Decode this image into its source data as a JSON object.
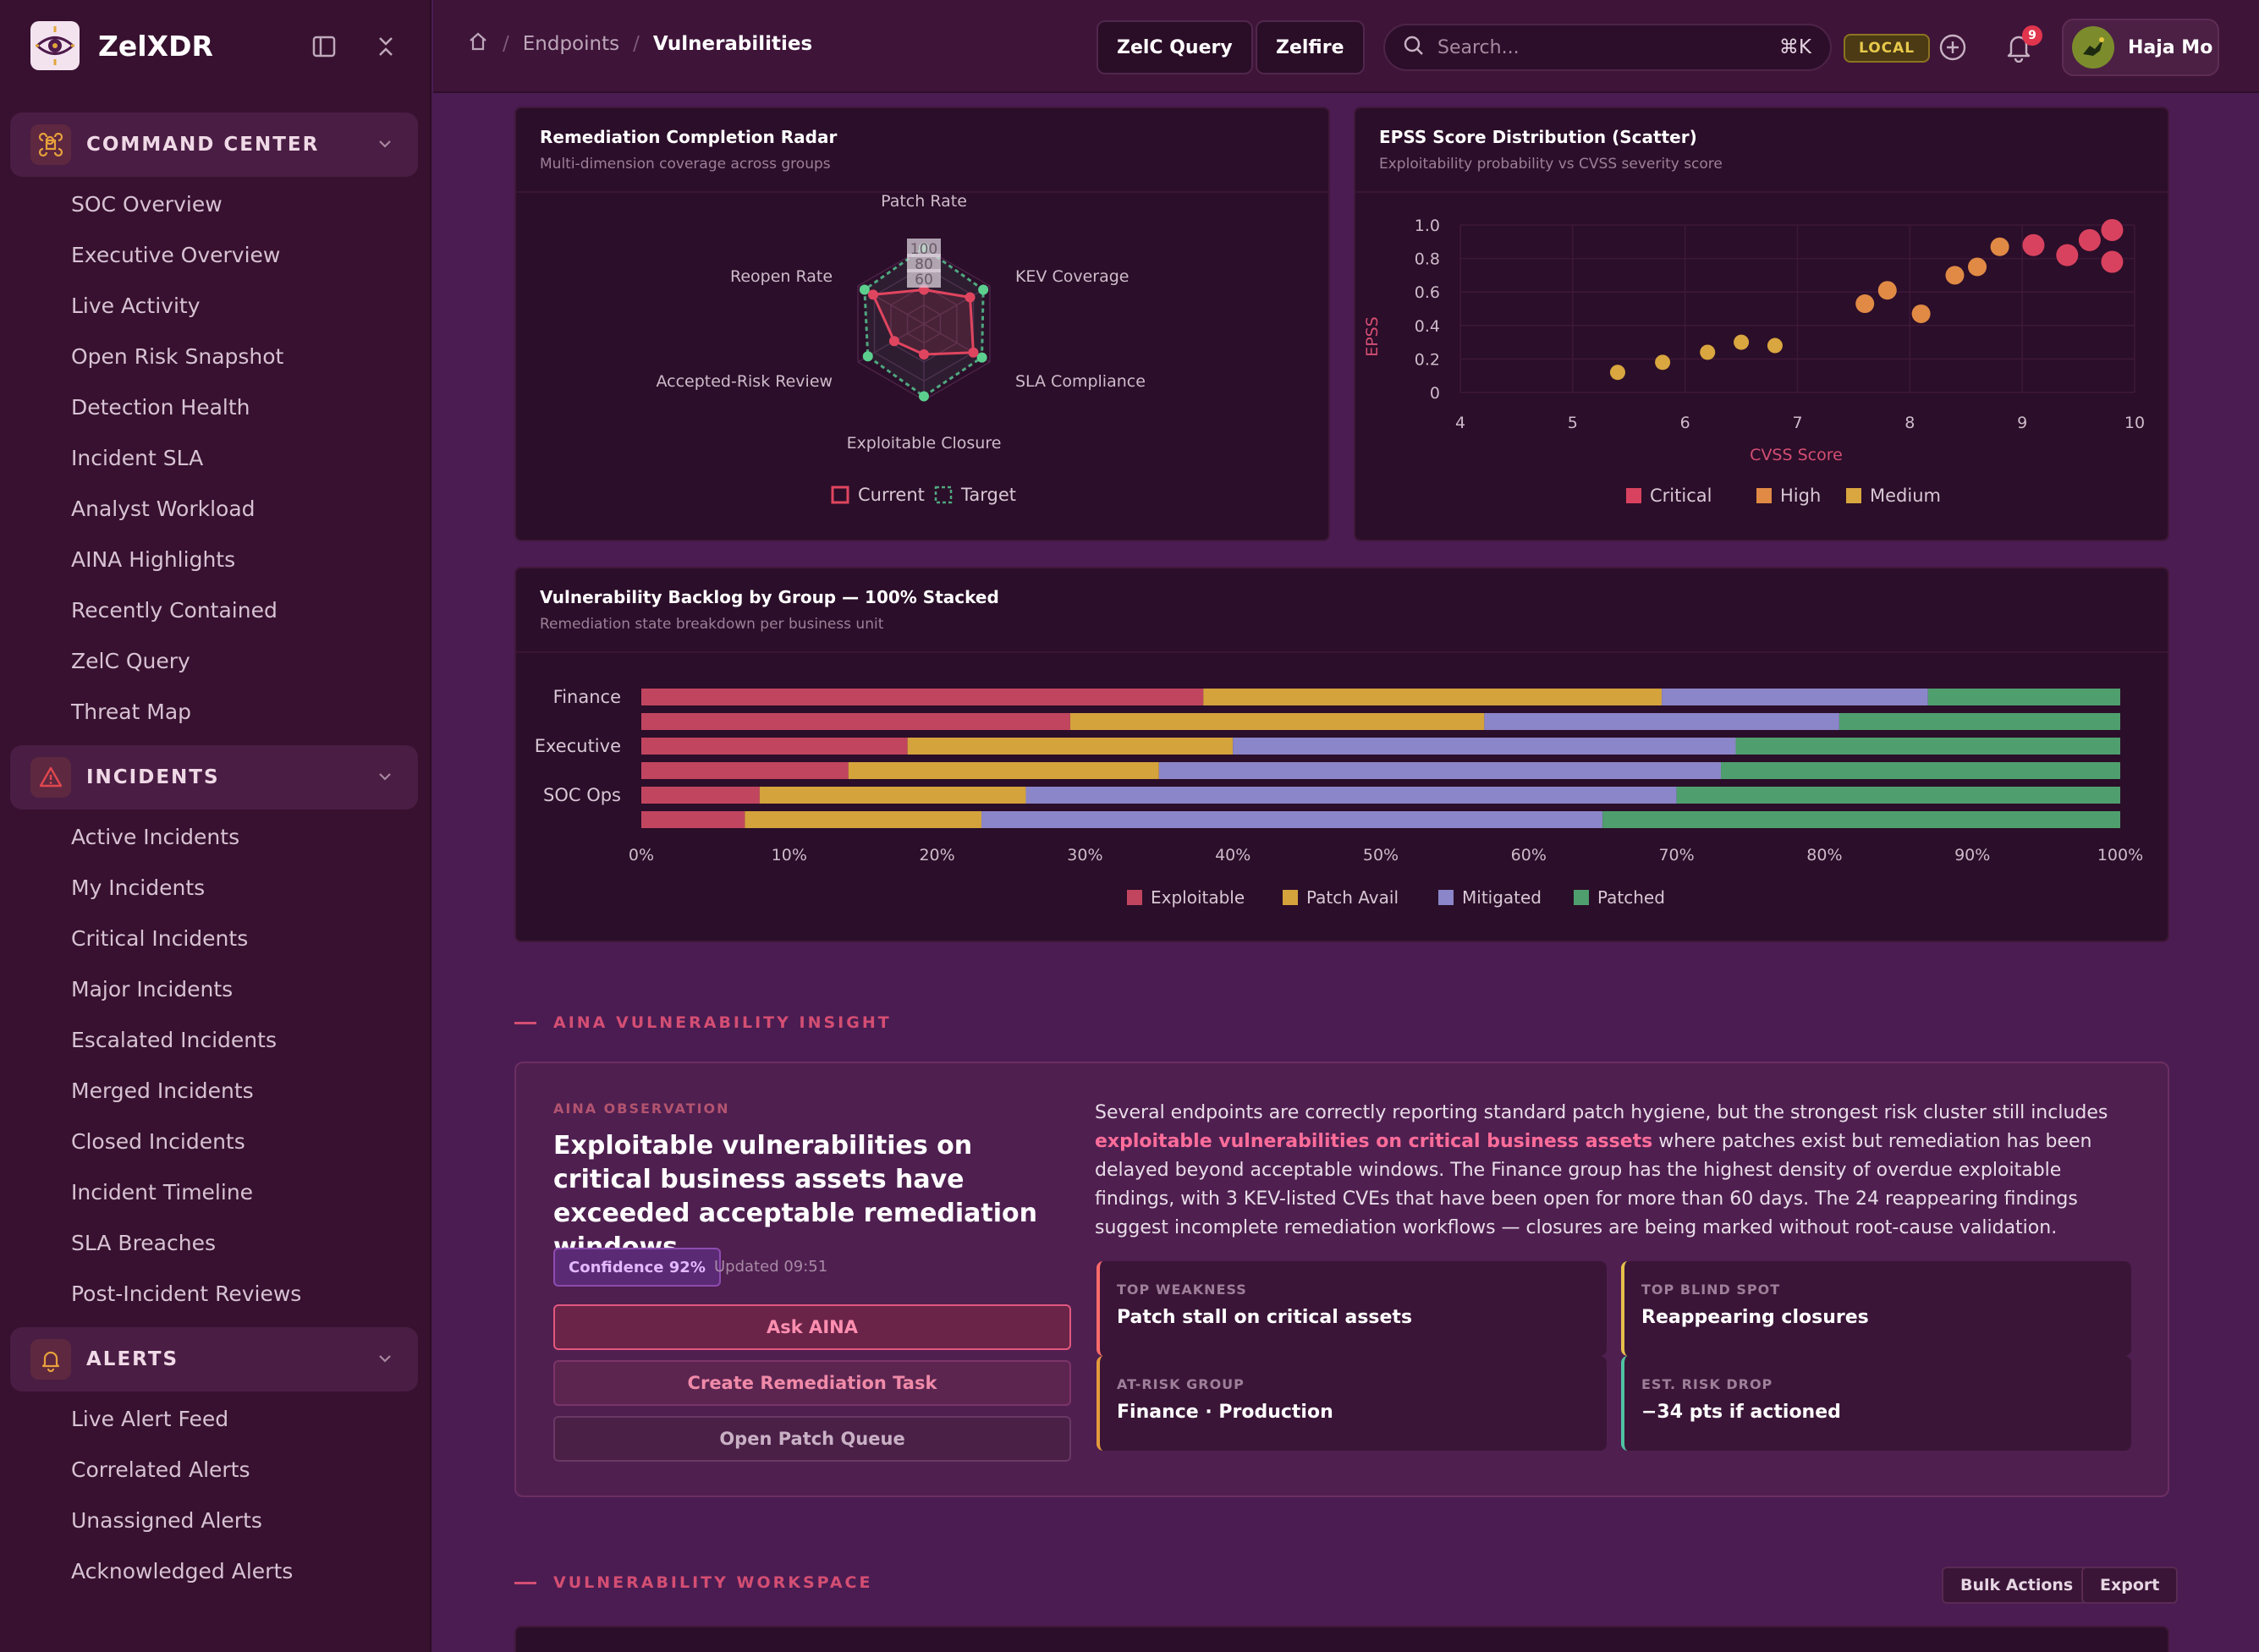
{
  "app": {
    "name": "ZelXDR"
  },
  "sidebar": {
    "groups": [
      {
        "label": "COMMAND CENTER",
        "items": [
          "SOC Overview",
          "Executive Overview",
          "Live Activity",
          "Open Risk Snapshot",
          "Detection Health",
          "Incident SLA",
          "Analyst Workload",
          "AINA Highlights",
          "Recently Contained",
          "ZelC Query",
          "Threat Map"
        ]
      },
      {
        "label": "INCIDENTS",
        "items": [
          "Active Incidents",
          "My Incidents",
          "Critical Incidents",
          "Major Incidents",
          "Escalated Incidents",
          "Merged Incidents",
          "Closed Incidents",
          "Incident Timeline",
          "SLA Breaches",
          "Post-Incident Reviews"
        ]
      },
      {
        "label": "ALERTS",
        "items": [
          "Live Alert Feed",
          "Correlated Alerts",
          "Unassigned Alerts",
          "Acknowledged Alerts"
        ]
      }
    ]
  },
  "topbar": {
    "breadcrumb": [
      "Endpoints",
      "Vulnerabilities"
    ],
    "btn_query": "ZelC Query",
    "btn_zelfire": "Zelfire",
    "search_placeholder": "Search...",
    "search_shortcut": "⌘K",
    "env_badge": "LOCAL",
    "notif_count": "9",
    "user_name": "Haja Mo"
  },
  "radar": {
    "title": "Remediation Completion Radar",
    "subtitle": "Multi-dimension coverage across groups",
    "chart_data": {
      "type": "radar",
      "axes": [
        "Patch Rate",
        "KEV Coverage",
        "SLA Compliance",
        "Exploitable Closure",
        "Accepted-Risk Review",
        "Reopen Rate"
      ],
      "range": [
        0,
        100
      ],
      "ticks": [
        "100",
        "80",
        "60"
      ],
      "series": [
        {
          "name": "Current",
          "values": [
            45,
            70,
            75,
            40,
            45,
            77
          ]
        },
        {
          "name": "Target",
          "values": [
            100,
            90,
            88,
            95,
            85,
            90
          ]
        }
      ]
    },
    "legend_current": "Current",
    "legend_target": "Target"
  },
  "scatter": {
    "title": "EPSS Score Distribution (Scatter)",
    "subtitle": "Exploitability probability vs CVSS severity score",
    "chart_data": {
      "type": "scatter",
      "xlabel": "CVSS Score",
      "ylabel": "EPSS",
      "xlim": [
        4,
        10
      ],
      "ylim": [
        0,
        1
      ],
      "xticks": [
        "4",
        "5",
        "6",
        "7",
        "8",
        "9",
        "10"
      ],
      "yticks": [
        "1.0",
        "0.8",
        "0.6",
        "0.4",
        "0.2",
        "0"
      ],
      "series": [
        {
          "name": "Critical",
          "color": "#d9425f",
          "points": [
            [
              9.1,
              0.88
            ],
            [
              9.4,
              0.82
            ],
            [
              9.6,
              0.91
            ],
            [
              9.8,
              0.97
            ],
            [
              9.8,
              0.78
            ]
          ]
        },
        {
          "name": "High",
          "color": "#e08a45",
          "points": [
            [
              7.6,
              0.53
            ],
            [
              7.8,
              0.61
            ],
            [
              8.1,
              0.47
            ],
            [
              8.4,
              0.7
            ],
            [
              8.6,
              0.75
            ],
            [
              8.8,
              0.87
            ]
          ]
        },
        {
          "name": "Medium",
          "color": "#d9a63f",
          "points": [
            [
              5.4,
              0.12
            ],
            [
              5.8,
              0.18
            ],
            [
              6.2,
              0.24
            ],
            [
              6.5,
              0.3
            ],
            [
              6.8,
              0.28
            ]
          ]
        }
      ]
    }
  },
  "backlog": {
    "title": "Vulnerability Backlog by Group — 100% Stacked",
    "subtitle": "Remediation state breakdown per business unit",
    "chart_data": {
      "type": "bar",
      "orientation": "horizontal",
      "stacked_percent": true,
      "category_labels": [
        "Finance",
        "",
        "Executive",
        "",
        "SOC Ops",
        ""
      ],
      "xticks": [
        "0%",
        "10%",
        "20%",
        "30%",
        "40%",
        "50%",
        "60%",
        "70%",
        "80%",
        "90%",
        "100%"
      ],
      "series": [
        {
          "name": "Exploitable",
          "color": "#c2455f",
          "values": [
            38,
            29,
            18,
            14,
            8,
            7
          ]
        },
        {
          "name": "Patch Avail",
          "color": "#d4a33c",
          "values": [
            31,
            28,
            22,
            21,
            18,
            16
          ]
        },
        {
          "name": "Mitigated",
          "color": "#8b86c9",
          "values": [
            18,
            24,
            34,
            38,
            44,
            42
          ]
        },
        {
          "name": "Patched",
          "color": "#4f9f6e",
          "values": [
            13,
            19,
            26,
            27,
            30,
            35
          ]
        }
      ]
    }
  },
  "insight": {
    "section_label": "AINA VULNERABILITY INSIGHT",
    "obs_label": "AINA OBSERVATION",
    "headline": "Exploitable vulnerabilities on critical business assets have exceeded acceptable remediation windows.",
    "confidence": "Confidence 92%",
    "updated": "Updated 09:51",
    "btn_ask": "Ask AINA",
    "btn_task": "Create Remediation Task",
    "btn_queue": "Open Patch Queue",
    "body_pre": "Several endpoints are correctly reporting standard patch hygiene, but the strongest risk cluster still includes ",
    "body_hl": "exploitable vulnerabilities on critical business assets",
    "body_post": " where patches exist but remediation has been delayed beyond acceptable windows. The Finance group has the highest density of overdue exploitable findings, with 3 KEV-listed CVEs that have been open for more than 60 days. The 24 reappearing findings suggest incomplete remediation workflows — closures are being marked without root-cause validation.",
    "cards": [
      {
        "label": "TOP WEAKNESS",
        "value": "Patch stall on critical assets",
        "color": "#ff6b6b"
      },
      {
        "label": "TOP BLIND SPOT",
        "value": "Reappearing closures",
        "color": "#e6c14a"
      },
      {
        "label": "AT-RISK GROUP",
        "value": "Finance · Production",
        "color": "#e39a3c"
      },
      {
        "label": "EST. RISK DROP",
        "value": "−34 pts if actioned",
        "color": "#4fc3a1"
      }
    ]
  },
  "workspace": {
    "section_label": "VULNERABILITY WORKSPACE",
    "btn_bulk": "Bulk Actions",
    "btn_export": "Export"
  }
}
